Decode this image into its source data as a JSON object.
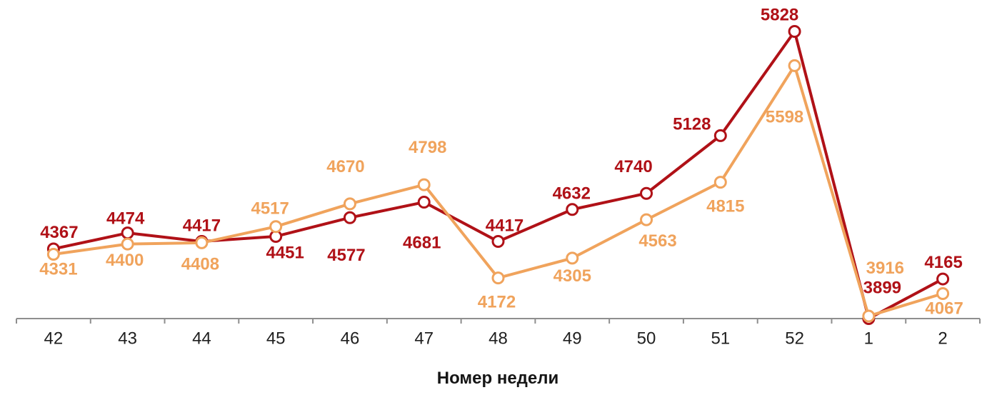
{
  "chart_data": {
    "type": "line",
    "title": "",
    "xlabel": "Номер недели",
    "ylabel": "",
    "categories": [
      "42",
      "43",
      "44",
      "45",
      "46",
      "47",
      "48",
      "49",
      "50",
      "51",
      "52",
      "1",
      "2"
    ],
    "series": [
      {
        "id": "dark-red-series",
        "color": "#B01117",
        "values": [
          4367,
          4474,
          4417,
          4451,
          4577,
          4681,
          4417,
          4632,
          4740,
          5128,
          5828,
          3899,
          4165
        ],
        "label_offsets": [
          [
            8,
            -24
          ],
          [
            -3,
            -21
          ],
          [
            0,
            -23
          ],
          [
            13,
            22
          ],
          [
            -5,
            52
          ],
          [
            -3,
            56
          ],
          [
            9,
            -23
          ],
          [
            -1,
            -23
          ],
          [
            -18,
            -38
          ],
          [
            -40,
            -17
          ],
          [
            -21,
            -24
          ],
          [
            19,
            -44
          ],
          [
            1,
            -24
          ]
        ]
      },
      {
        "id": "orange-series",
        "color": "#F0A35C",
        "values": [
          4331,
          4400,
          4408,
          4517,
          4670,
          4798,
          4172,
          4305,
          4563,
          4815,
          5598,
          3916,
          4067
        ],
        "label_offsets": [
          [
            7,
            20
          ],
          [
            -4,
            22
          ],
          [
            -2,
            29
          ],
          [
            -8,
            -26
          ],
          [
            -6,
            -53
          ],
          [
            5,
            -53
          ],
          [
            -2,
            33
          ],
          [
            0,
            24
          ],
          [
            16,
            29
          ],
          [
            7,
            33
          ],
          [
            -14,
            71
          ],
          [
            23,
            -68
          ],
          [
            2,
            20
          ]
        ]
      }
    ],
    "ylim": [
      3899,
      5828
    ],
    "grid": false,
    "legend": "none",
    "marker": "open-circle-white-fill",
    "axis_color": "#8E8E8E",
    "tick_label_color": "#1f1f1f",
    "data_labels": "shown"
  }
}
